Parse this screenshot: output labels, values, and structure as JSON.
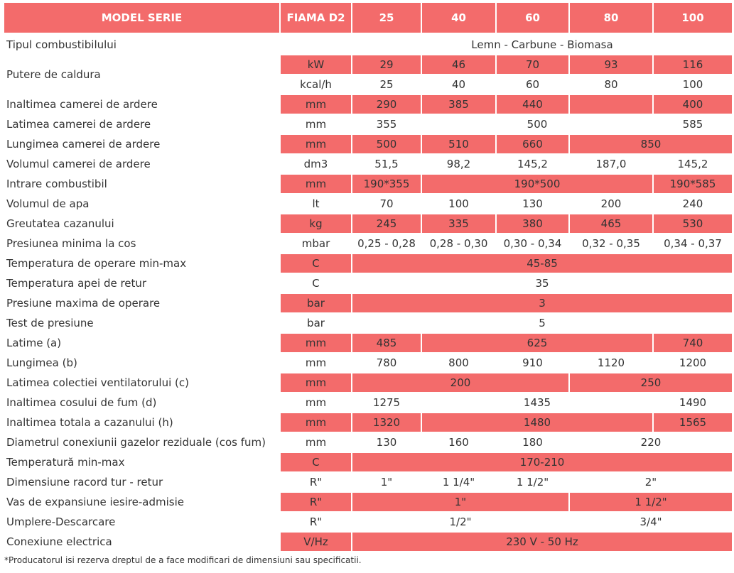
{
  "header": [
    "MODEL SERIE",
    "FIAMA D2",
    "25",
    "40",
    "60",
    "80",
    "100"
  ],
  "rows": [
    {
      "label": "Tipul combustibilului",
      "unit": "",
      "cells": [
        {
          "v": "Lemn - Carbune - Biomasa",
          "s": 5
        }
      ],
      "shade": false
    },
    {
      "label": "Putere de caldura",
      "rowspan": 2,
      "unit": "kW",
      "cells": [
        {
          "v": "29"
        },
        {
          "v": "46"
        },
        {
          "v": "70"
        },
        {
          "v": "93"
        },
        {
          "v": "116"
        }
      ],
      "shade": true
    },
    {
      "cont": true,
      "unit": "kcal/h",
      "cells": [
        {
          "v": "25"
        },
        {
          "v": "40"
        },
        {
          "v": "60"
        },
        {
          "v": "80"
        },
        {
          "v": "100"
        }
      ],
      "shade": false
    },
    {
      "label": "Inaltimea camerei de ardere",
      "unit": "mm",
      "cells": [
        {
          "v": "290"
        },
        {
          "v": "385"
        },
        {
          "v": "440"
        },
        {
          "v": ""
        },
        {
          "v": "400"
        }
      ],
      "shade": true
    },
    {
      "label": "Latimea camerei de ardere",
      "unit": "mm",
      "cells": [
        {
          "v": "355"
        },
        {
          "v": "500",
          "s": 3
        },
        {
          "v": "585"
        }
      ],
      "shade": false
    },
    {
      "label": "Lungimea camerei de ardere",
      "unit": "mm",
      "cells": [
        {
          "v": "500"
        },
        {
          "v": "510"
        },
        {
          "v": "660"
        },
        {
          "v": "850",
          "s": 2
        }
      ],
      "shade": true
    },
    {
      "label": "Volumul camerei de ardere",
      "unit": "dm3",
      "cells": [
        {
          "v": "51,5"
        },
        {
          "v": "98,2"
        },
        {
          "v": "145,2"
        },
        {
          "v": "187,0"
        },
        {
          "v": "145,2"
        }
      ],
      "shade": false
    },
    {
      "label": "Intrare combustibil",
      "unit": "mm",
      "cells": [
        {
          "v": "190*355"
        },
        {
          "v": "190*500",
          "s": 3
        },
        {
          "v": "190*585"
        }
      ],
      "shade": true
    },
    {
      "label": "Volumul de apa",
      "unit": "lt",
      "cells": [
        {
          "v": "70"
        },
        {
          "v": "100"
        },
        {
          "v": "130"
        },
        {
          "v": "200"
        },
        {
          "v": "240"
        }
      ],
      "shade": false
    },
    {
      "label": "Greutatea cazanului",
      "unit": "kg",
      "cells": [
        {
          "v": "245"
        },
        {
          "v": "335"
        },
        {
          "v": "380"
        },
        {
          "v": "465"
        },
        {
          "v": "530"
        }
      ],
      "shade": true
    },
    {
      "label": "Presiunea minima la cos",
      "unit": "mbar",
      "cells": [
        {
          "v": "0,25 - 0,28"
        },
        {
          "v": "0,28 - 0,30"
        },
        {
          "v": "0,30 - 0,34"
        },
        {
          "v": "0,32 - 0,35"
        },
        {
          "v": "0,34 - 0,37"
        }
      ],
      "shade": false
    },
    {
      "label": "Temperatura de operare min-max",
      "unit": "C",
      "cells": [
        {
          "v": "45-85",
          "s": 5
        }
      ],
      "shade": true
    },
    {
      "label": "Temperatura apei de retur",
      "unit": "C",
      "cells": [
        {
          "v": "35",
          "s": 5
        }
      ],
      "shade": false
    },
    {
      "label": "Presiune maxima de operare",
      "unit": "bar",
      "cells": [
        {
          "v": "3",
          "s": 5
        }
      ],
      "shade": true
    },
    {
      "label": "Test de presiune",
      "unit": "bar",
      "cells": [
        {
          "v": "5",
          "s": 5
        }
      ],
      "shade": false
    },
    {
      "label": "Latime (a)",
      "unit": "mm",
      "cells": [
        {
          "v": "485"
        },
        {
          "v": "625",
          "s": 3
        },
        {
          "v": "740"
        }
      ],
      "shade": true
    },
    {
      "label": "Lungimea (b)",
      "unit": "mm",
      "cells": [
        {
          "v": "780"
        },
        {
          "v": "800"
        },
        {
          "v": "910"
        },
        {
          "v": "1120"
        },
        {
          "v": "1200"
        }
      ],
      "shade": false
    },
    {
      "label": "Latimea colectiei ventilatorului (c)",
      "unit": "mm",
      "cells": [
        {
          "v": "200",
          "s": 3
        },
        {
          "v": "250",
          "s": 2
        }
      ],
      "shade": true
    },
    {
      "label": "Inaltimea cosului de fum (d)",
      "unit": "mm",
      "cells": [
        {
          "v": "1275"
        },
        {
          "v": "1435",
          "s": 3
        },
        {
          "v": "1490"
        }
      ],
      "shade": false
    },
    {
      "label": "Inaltimea totala a cazanului (h)",
      "unit": "mm",
      "cells": [
        {
          "v": "1320"
        },
        {
          "v": "1480",
          "s": 3
        },
        {
          "v": "1565"
        }
      ],
      "shade": true
    },
    {
      "label": "Diametrul conexiunii gazelor reziduale (cos fum)",
      "unit": "mm",
      "cells": [
        {
          "v": "130"
        },
        {
          "v": "160"
        },
        {
          "v": "180"
        },
        {
          "v": "220",
          "s": 2
        }
      ],
      "shade": false
    },
    {
      "label": "Temperatură min-max",
      "unit": "C",
      "cells": [
        {
          "v": "170-210",
          "s": 5
        }
      ],
      "shade": true
    },
    {
      "label": "Dimensiune racord tur - retur",
      "unit": "R\"",
      "cells": [
        {
          "v": "1\""
        },
        {
          "v": "1 1/4\""
        },
        {
          "v": "1 1/2\""
        },
        {
          "v": "2\"",
          "s": 2
        }
      ],
      "shade": false
    },
    {
      "label": "Vas de expansiune iesire-admisie",
      "unit": "R\"",
      "cells": [
        {
          "v": "1\"",
          "s": 3
        },
        {
          "v": "1 1/2\"",
          "s": 2
        }
      ],
      "shade": true
    },
    {
      "label": "Umplere-Descarcare",
      "unit": "R\"",
      "cells": [
        {
          "v": "1/2\"",
          "s": 3
        },
        {
          "v": "3/4\"",
          "s": 2
        }
      ],
      "shade": false
    },
    {
      "label": "Conexiune electrica",
      "unit": "V/Hz",
      "cells": [
        {
          "v": "230 V - 50 Hz",
          "s": 5
        }
      ],
      "shade": true
    }
  ],
  "footnote": "*Producatorul isi rezerva dreptul de a face modificari de dimensiuni sau specificatii.",
  "colors": {
    "accent": "#f36b6b",
    "text": "#333333",
    "header_text": "#ffffff"
  }
}
